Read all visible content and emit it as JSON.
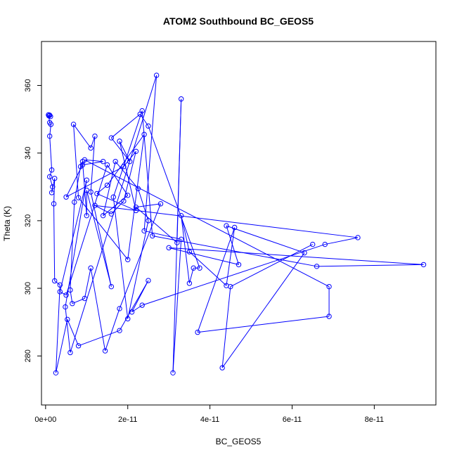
{
  "chart_data": {
    "type": "line",
    "title": "ATOM2 Southbound BC_GEOS5",
    "xlabel": "BC_GEOS5",
    "ylabel": "Theta (K)",
    "xlim": [
      -1e-12,
      9.5e-11
    ],
    "ylim": [
      265.5,
      373
    ],
    "x_ticks": [
      0,
      2e-11,
      4e-11,
      6e-11,
      8e-11
    ],
    "x_tick_labels": [
      "0e+00",
      "2e-11",
      "4e-11",
      "6e-11",
      "8e-11"
    ],
    "y_ticks": [
      280,
      300,
      320,
      340,
      360
    ],
    "y_tick_labels": [
      "280",
      "300",
      "320",
      "340",
      "360"
    ],
    "grid": false,
    "legend": "none",
    "series": [
      {
        "color": "#0000ff",
        "marker": "open-circle",
        "points": [
          [
            1e-12,
            351.2
          ],
          [
            8e-13,
            351.0
          ],
          [
            1.2e-12,
            350.8
          ],
          [
            7e-13,
            351.3
          ],
          [
            1e-12,
            349.0
          ],
          [
            1.3e-12,
            348.5
          ],
          [
            1e-12,
            345.0
          ],
          [
            1.5e-12,
            335.0
          ],
          [
            1e-12,
            333.0
          ],
          [
            1.7e-12,
            330.0
          ],
          [
            1.5e-12,
            328.3
          ],
          [
            2.2e-12,
            332.5
          ],
          [
            2e-12,
            325.0
          ],
          [
            2.2e-12,
            302.2
          ],
          [
            3.5e-12,
            301.0
          ],
          [
            2.5e-12,
            275.0
          ],
          [
            5.3e-12,
            290.8
          ],
          [
            8e-12,
            283.0
          ],
          [
            1.8e-11,
            287.5
          ],
          [
            2.5e-11,
            302.3
          ],
          [
            2.1e-11,
            293.0
          ],
          [
            2.35e-11,
            295.0
          ],
          [
            6.8e-11,
            313.0
          ],
          [
            7.6e-11,
            315.0
          ],
          [
            1.2e-11,
            324.5
          ],
          [
            1.6e-11,
            322.0
          ],
          [
            1.9e-11,
            325.8
          ],
          [
            2.2e-11,
            340.5
          ],
          [
            1.9e-11,
            336.0
          ],
          [
            5e-12,
            327.0
          ],
          [
            9e-12,
            336.5
          ],
          [
            1.4e-11,
            337.5
          ],
          [
            9.5e-12,
            338.0
          ],
          [
            6.9e-11,
            300.5
          ],
          [
            6.9e-11,
            291.7
          ],
          [
            3.7e-11,
            287.0
          ],
          [
            4.6e-11,
            318.0
          ],
          [
            4.4e-11,
            300.8
          ],
          [
            3.5e-11,
            310.8
          ],
          [
            3.3e-11,
            321.5
          ],
          [
            3.5e-11,
            301.5
          ],
          [
            3.6e-11,
            306.0
          ],
          [
            3.75e-11,
            306.0
          ],
          [
            2.5e-11,
            348.0
          ],
          [
            2.3e-11,
            351.5
          ],
          [
            1.6e-11,
            344.5
          ],
          [
            2.05e-11,
            337.5
          ],
          [
            1.8e-11,
            343.5
          ],
          [
            2.2e-11,
            323.0
          ],
          [
            1.25e-11,
            328.0
          ],
          [
            1.5e-11,
            330.5
          ],
          [
            2.4e-11,
            345.5
          ],
          [
            2e-11,
            308.5
          ],
          [
            8e-12,
            326.8
          ],
          [
            6.8e-12,
            348.5
          ],
          [
            1.1e-11,
            341.5
          ],
          [
            1.2e-11,
            345.0
          ],
          [
            1.1e-11,
            328.5
          ],
          [
            1.6e-11,
            300.5
          ],
          [
            1e-11,
            329.0
          ],
          [
            1e-11,
            321.5
          ],
          [
            9e-12,
            337.5
          ],
          [
            8.5e-12,
            336.0
          ],
          [
            7e-12,
            325.5
          ],
          [
            6e-12,
            299.5
          ],
          [
            6.5e-12,
            295.5
          ],
          [
            9.5e-12,
            297.0
          ],
          [
            1.1e-11,
            306.0
          ],
          [
            1.45e-11,
            281.5
          ],
          [
            1.8e-11,
            294.0
          ],
          [
            2.8e-11,
            325.0
          ],
          [
            2.2e-11,
            324.0
          ],
          [
            3.2e-11,
            313.5
          ],
          [
            3.3e-11,
            356.0
          ],
          [
            3.1e-11,
            275.0
          ],
          [
            3.3e-11,
            314.5
          ],
          [
            2.4e-11,
            317.0
          ],
          [
            2.7e-11,
            363.0
          ],
          [
            6e-12,
            281.0
          ],
          [
            4.8e-12,
            294.5
          ],
          [
            1e-11,
            332.0
          ],
          [
            3.5e-12,
            299.0
          ],
          [
            5e-12,
            298.0
          ],
          [
            1.5e-11,
            336.5
          ],
          [
            2e-11,
            327.5
          ],
          [
            1.4e-11,
            321.5
          ],
          [
            1.7e-11,
            337.5
          ],
          [
            2.25e-11,
            329.5
          ],
          [
            2.5e-11,
            320.0
          ],
          [
            2e-11,
            291.0
          ],
          [
            1.65e-11,
            327.0
          ],
          [
            2.35e-11,
            352.5
          ],
          [
            2.6e-11,
            315.5
          ],
          [
            6.6e-11,
            306.5
          ],
          [
            9.2e-11,
            307.0
          ],
          [
            3e-11,
            312.0
          ],
          [
            4.7e-11,
            307.0
          ],
          [
            4.4e-11,
            318.5
          ],
          [
            6.3e-11,
            310.5
          ],
          [
            4.3e-11,
            276.5
          ],
          [
            4.5e-11,
            300.5
          ],
          [
            6.5e-11,
            313.0
          ]
        ]
      }
    ]
  }
}
